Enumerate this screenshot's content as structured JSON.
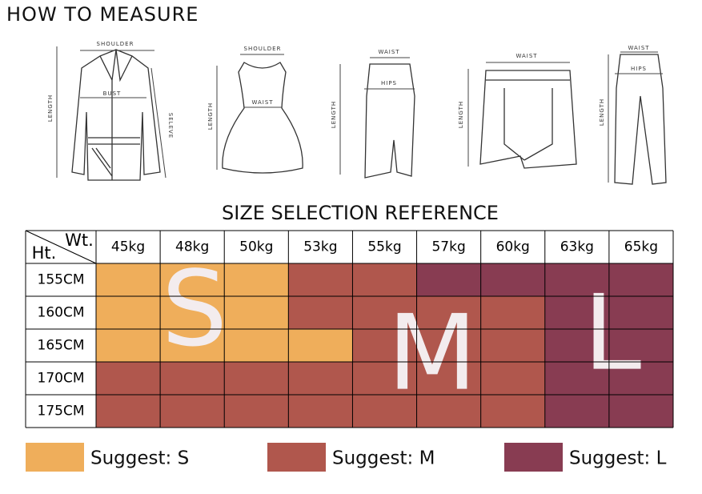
{
  "header": {
    "title": "HOW TO MEASURE"
  },
  "garments": [
    {
      "labels": [
        "SHOULDER",
        "BUST",
        "LENGTH",
        "SELEVE"
      ]
    },
    {
      "labels": [
        "SHOULDER",
        "WAIST",
        "LENGTH"
      ]
    },
    {
      "labels": [
        "WAIST",
        "HIPS",
        "LENGTH"
      ]
    },
    {
      "labels": [
        "WAIST",
        "LENGTH"
      ]
    },
    {
      "labels": [
        "WAIST",
        "HIPS",
        "LENGTH"
      ]
    }
  ],
  "table": {
    "title": "SIZE SELECTION REFERENCE",
    "corner_weight": "Wt.",
    "corner_height": "Ht.",
    "weights": [
      "45kg",
      "48kg",
      "50kg",
      "53kg",
      "55kg",
      "57kg",
      "60kg",
      "63kg",
      "65kg"
    ],
    "heights": [
      "155CM",
      "160CM",
      "165CM",
      "170CM",
      "175CM"
    ],
    "cells": [
      [
        "S",
        "S",
        "S",
        "M",
        "M",
        "L",
        "L",
        "L",
        "L"
      ],
      [
        "S",
        "S",
        "S",
        "M",
        "M",
        "M",
        "M",
        "L",
        "L"
      ],
      [
        "S",
        "S",
        "S",
        "S",
        "M",
        "M",
        "M",
        "L",
        "L"
      ],
      [
        "M",
        "M",
        "M",
        "M",
        "M",
        "M",
        "M",
        "L",
        "L"
      ],
      [
        "M",
        "M",
        "M",
        "M",
        "M",
        "M",
        "M",
        "L",
        "L"
      ]
    ],
    "overlay_letters": [
      "S",
      "M",
      "L"
    ],
    "size_colors": {
      "S": "#efae5b",
      "M": "#b0574d",
      "L": "#883c52"
    }
  },
  "legend": [
    {
      "label": "Suggest: S",
      "color": "#efae5b"
    },
    {
      "label": "Suggest: M",
      "color": "#b0574d"
    },
    {
      "label": "Suggest: L",
      "color": "#883c52"
    }
  ]
}
